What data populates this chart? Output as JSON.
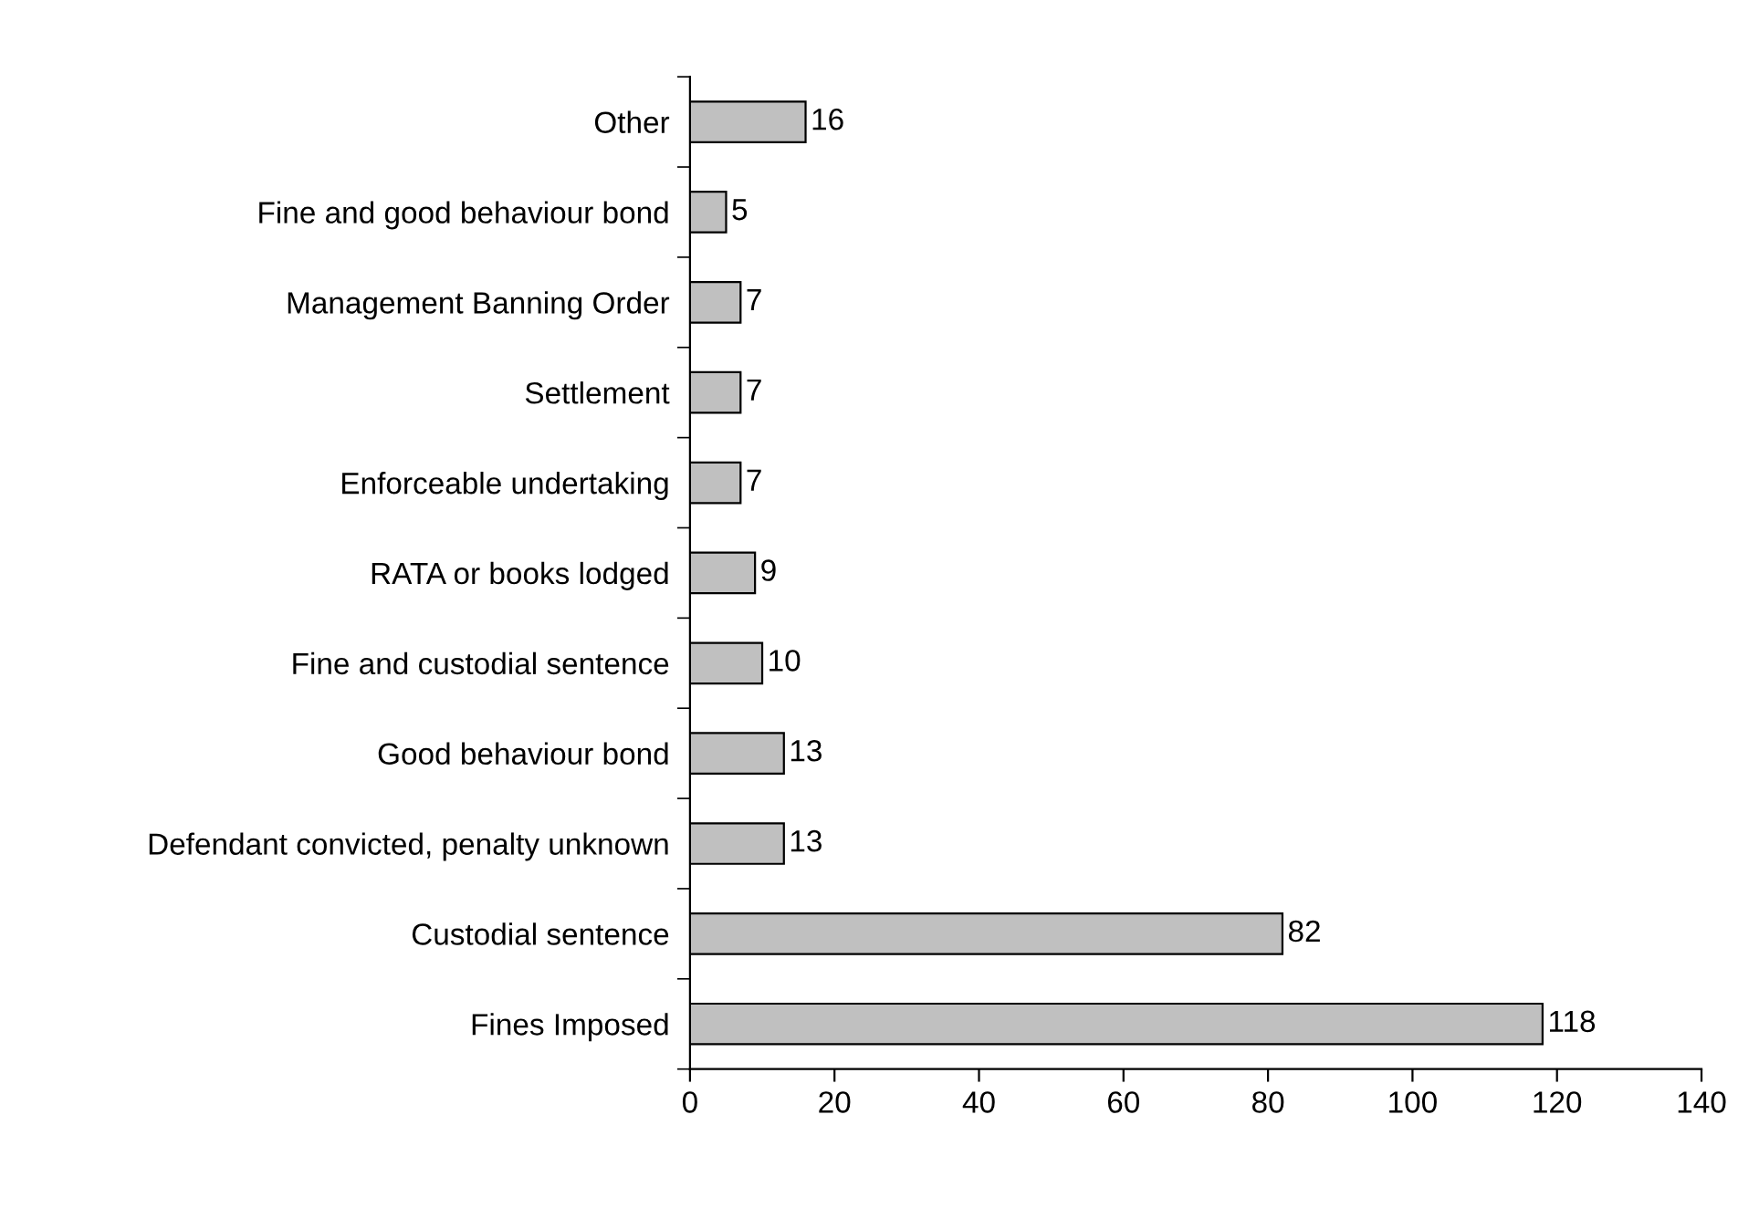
{
  "chart_data": {
    "type": "bar",
    "orientation": "horizontal",
    "categories": [
      "Other",
      "Fine and good behaviour bond",
      "Management Banning Order",
      "Settlement",
      "Enforceable undertaking",
      "RATA or books lodged",
      "Fine and custodial sentence",
      "Good behaviour bond",
      "Defendant convicted, penalty unknown",
      "Custodial sentence",
      "Fines Imposed"
    ],
    "values": [
      16,
      5,
      7,
      7,
      7,
      9,
      10,
      13,
      13,
      82,
      118
    ],
    "color": "#c0c0c0",
    "xlim": [
      0,
      140
    ],
    "xticks": [
      0,
      20,
      40,
      60,
      80,
      100,
      120,
      140
    ],
    "data_labels": true,
    "grid": false
  }
}
